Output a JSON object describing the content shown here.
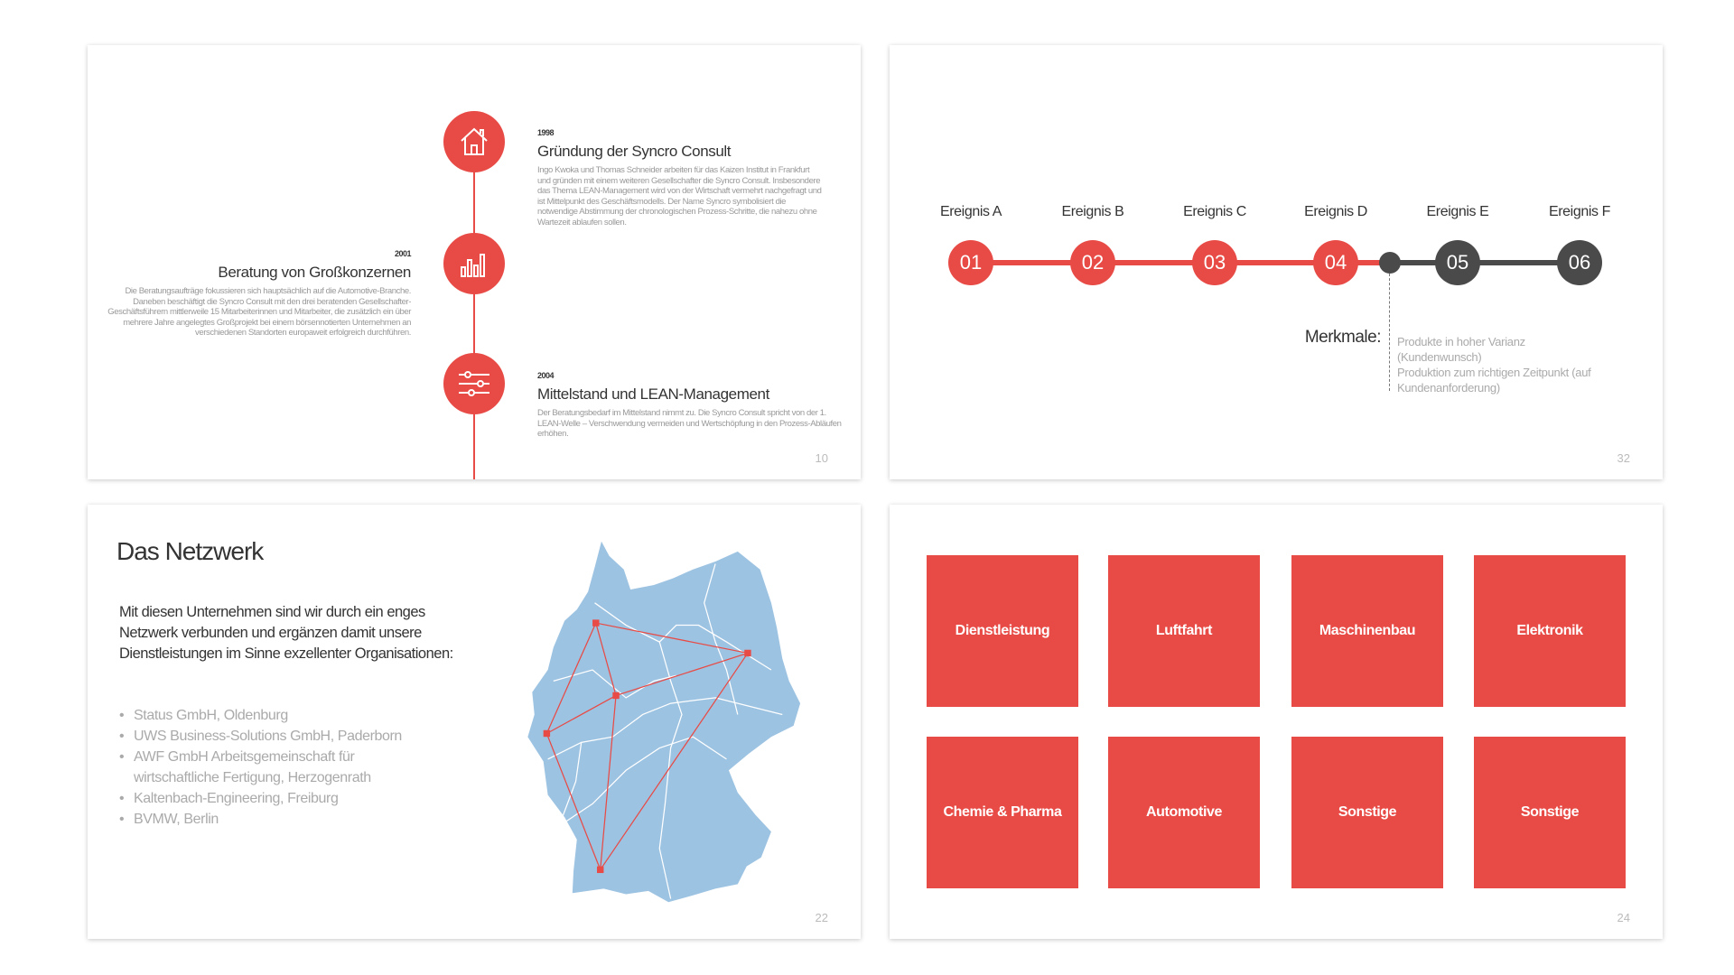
{
  "colors": {
    "accent": "#e84a45",
    "dark": "#4a4a4a",
    "map": "#9dc3e2"
  },
  "slide1": {
    "page": "10",
    "events": [
      {
        "year": "1998",
        "title": "Gründung der Syncro Consult",
        "text": "Ingo Kwoka und Thomas Schneider arbeiten für das Kaizen Institut in Frankfurt und gründen mit einem weiteren Gesellschafter die Syncro Consult. Insbesondere das Thema LEAN-Management wird von der Wirtschaft vermehrt nachgefragt und ist Mittelpunkt des Geschäftsmodells. Der Name Syncro symbolisiert die notwendige Abstimmung der chronologischen Prozess-Schritte, die nahezu ohne Wartezeit ablaufen sollen.",
        "icon": "house-icon"
      },
      {
        "year": "2001",
        "title": "Beratung von Großkonzernen",
        "text": "Die Beratungsaufträge fokussieren sich hauptsächlich auf die Automotive-Branche. Daneben beschäftigt die Syncro Consult mit den drei beratenden Gesellschafter-Geschäftsführern mittlerweile 15 Mitarbeiterinnen und Mitarbeiter, die zusätzlich ein über mehrere Jahre angelegtes Großprojekt bei einem börsennotierten Unternehmen an verschiedenen Standorten europaweit erfolgreich durchführen.",
        "icon": "bar-chart-icon"
      },
      {
        "year": "2004",
        "title": "Mittelstand und LEAN-Management",
        "text": "Der Beratungsbedarf im Mittelstand nimmt zu. Die Syncro Consult spricht von der 1. LEAN-Welle – Verschwendung vermeiden und Wertschöpfung in den Prozess-Abläufen erhöhen.",
        "icon": "sliders-icon"
      }
    ]
  },
  "slide2": {
    "page": "32",
    "events": [
      {
        "label": "Ereignis A",
        "num": "01",
        "state": "done"
      },
      {
        "label": "Ereignis B",
        "num": "02",
        "state": "done"
      },
      {
        "label": "Ereignis C",
        "num": "03",
        "state": "done"
      },
      {
        "label": "Ereignis D",
        "num": "04",
        "state": "done"
      },
      {
        "label": "Ereignis E",
        "num": "05",
        "state": "pending"
      },
      {
        "label": "Ereignis F",
        "num": "06",
        "state": "pending"
      }
    ],
    "merkmale_label": "Merkmale:",
    "merkmale_lines": [
      "Produkte in hoher Varianz",
      "(Kundenwunsch)",
      "Produktion zum richtigen Zeitpunkt (auf",
      "Kundenanforderung)"
    ]
  },
  "slide3": {
    "page": "22",
    "title": "Das Netzwerk",
    "intro": "Mit diesen Unternehmen sind wir durch ein enges Netzwerk verbunden und ergänzen damit unsere Dienstleistungen im Sinne exzellenter Organisationen:",
    "partners": [
      "Status GmbH, Oldenburg",
      "UWS Business-Solutions GmbH, Paderborn",
      "AWF GmbH Arbeitsgemeinschaft für wirtschaftliche Fertigung, Herzogenrath",
      "Kaltenbach-Engineering, Freiburg",
      "BVMW, Berlin"
    ]
  },
  "slide4": {
    "page": "24",
    "tiles": [
      "Dienstleistung",
      "Luftfahrt",
      "Maschinenbau",
      "Elektronik",
      "Chemie & Pharma",
      "Automotive",
      "Sonstige",
      "Sonstige"
    ]
  }
}
